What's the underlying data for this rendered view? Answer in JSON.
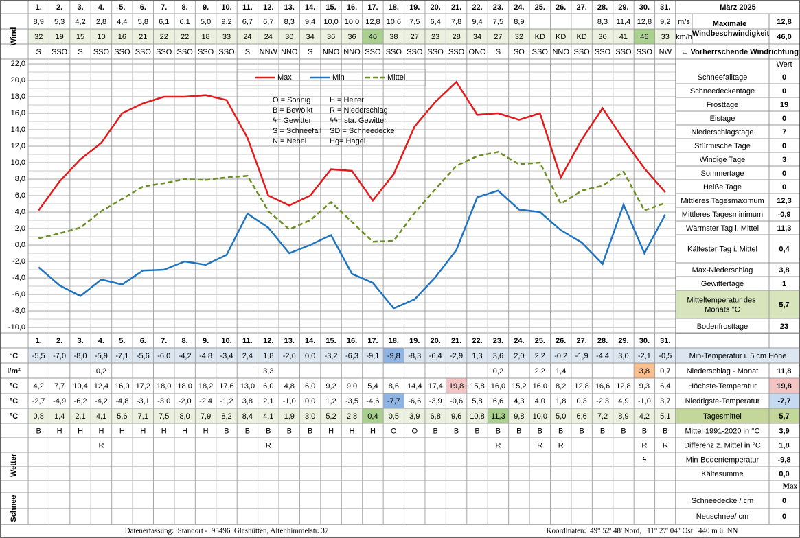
{
  "header": {
    "title": "März 2025"
  },
  "chart_data": {
    "type": "line",
    "categories": [
      "1.",
      "2.",
      "3.",
      "4.",
      "5.",
      "6.",
      "7.",
      "8.",
      "9.",
      "10.",
      "11.",
      "12.",
      "13.",
      "14.",
      "15.",
      "16.",
      "17.",
      "18.",
      "19.",
      "20.",
      "21.",
      "22.",
      "23.",
      "24.",
      "25.",
      "26.",
      "27.",
      "28.",
      "29.",
      "30.",
      "31."
    ],
    "category_colors": [
      "#000000",
      "#e00000",
      "#000000",
      "#000000",
      "#000000",
      "#000000",
      "#000000",
      "#000000",
      "#e00000",
      "#000000",
      "#000000",
      "#000000",
      "#000000",
      "#000000",
      "#000000",
      "#e00000",
      "#000000",
      "#000000",
      "#000000",
      "#000000",
      "#000000",
      "#000000",
      "#e00000",
      "#000000",
      "#000000",
      "#000000",
      "#000000",
      "#000000",
      "#000000",
      "#e00000",
      "#000000"
    ],
    "ylim": [
      -10,
      22
    ],
    "yticks": [
      {
        "value": 22,
        "label": "22,0"
      },
      {
        "value": 20,
        "label": "20,0"
      },
      {
        "value": 18,
        "label": "18,0"
      },
      {
        "value": 16,
        "label": "16,0"
      },
      {
        "value": 14,
        "label": "14,0"
      },
      {
        "value": 12,
        "label": "12,0"
      },
      {
        "value": 10,
        "label": "10,0"
      },
      {
        "value": 8,
        "label": "8,0"
      },
      {
        "value": 6,
        "label": "6,0"
      },
      {
        "value": 4,
        "label": "4,0"
      },
      {
        "value": 2,
        "label": "2,0"
      },
      {
        "value": 0,
        "label": "0,0"
      },
      {
        "value": -2,
        "label": "-2,0"
      },
      {
        "value": -4,
        "label": "-4,0"
      },
      {
        "value": -6,
        "label": "-6,0"
      },
      {
        "value": -8,
        "label": "-8,0"
      },
      {
        "value": -10,
        "label": "-10,0"
      }
    ],
    "grid": true,
    "legend": "top",
    "series": [
      {
        "name": "Max",
        "color": "#e31a1c",
        "line_style": "solid",
        "values": [
          4.2,
          7.7,
          10.4,
          12.4,
          16.0,
          17.2,
          18.0,
          18.0,
          18.2,
          17.6,
          13.0,
          6.0,
          4.8,
          6.0,
          9.2,
          9.0,
          5.4,
          8.6,
          14.4,
          17.4,
          19.8,
          15.8,
          16.0,
          15.2,
          16.0,
          8.2,
          12.8,
          16.6,
          12.8,
          9.3,
          6.4
        ],
        "value_labels": [
          "4,2",
          "7,7",
          "10,4",
          "12,4",
          "16,0",
          "17,2",
          "18,0",
          "18,0",
          "18,2",
          "17,6",
          "13,0",
          "6,0",
          "4,8",
          "6,0",
          "9,2",
          "9,0",
          "5,4",
          "8,6",
          "14,4",
          "17,4",
          "19,8",
          "15,8",
          "16,0",
          "15,2",
          "16,0",
          "8,2",
          "12,8",
          "16,6",
          "12,8",
          "9,3",
          "6,4"
        ],
        "row_unit": "°C",
        "row_label": "Höchste-Temperatur",
        "summary": "19,8",
        "summary_color": "#f2c4c4",
        "highlights": [
          {
            "index": 20,
            "color": "#f2c4c4"
          }
        ]
      },
      {
        "name": "Min",
        "color": "#1f74c0",
        "line_style": "solid",
        "values": [
          -2.7,
          -4.9,
          -6.2,
          -4.2,
          -4.8,
          -3.1,
          -3.0,
          -2.0,
          -2.4,
          -1.2,
          3.8,
          2.1,
          -1.0,
          0.0,
          1.2,
          -3.5,
          -4.6,
          -7.7,
          -6.6,
          -3.9,
          -0.6,
          5.8,
          6.6,
          4.3,
          4.0,
          1.8,
          0.3,
          -2.3,
          4.9,
          -1.0,
          3.7
        ],
        "value_labels": [
          "-2,7",
          "-4,9",
          "-6,2",
          "-4,2",
          "-4,8",
          "-3,1",
          "-3,0",
          "-2,0",
          "-2,4",
          "-1,2",
          "3,8",
          "2,1",
          "-1,0",
          "0,0",
          "1,2",
          "-3,5",
          "-4,6",
          "-7,7",
          "-6,6",
          "-3,9",
          "-0,6",
          "5,8",
          "6,6",
          "4,3",
          "4,0",
          "1,8",
          "0,3",
          "-2,3",
          "4,9",
          "-1,0",
          "3,7"
        ],
        "row_unit": "°C",
        "row_label": "Niedrigste-Temperatur",
        "summary": "-7,7",
        "summary_color": "#c5d9f1",
        "highlights": [
          {
            "index": 17,
            "color": "#8eb4e3"
          }
        ]
      },
      {
        "name": "Mittel",
        "color": "#6b8e23",
        "line_style": "dashed",
        "values": [
          0.8,
          1.4,
          2.1,
          4.1,
          5.6,
          7.1,
          7.5,
          8.0,
          7.9,
          8.2,
          8.4,
          4.1,
          1.9,
          3.0,
          5.2,
          2.8,
          0.4,
          0.5,
          3.9,
          6.8,
          9.6,
          10.8,
          11.3,
          9.8,
          10.0,
          5.0,
          6.6,
          7.2,
          8.9,
          4.2,
          5.1
        ],
        "value_labels": [
          "0,8",
          "1,4",
          "2,1",
          "4,1",
          "5,6",
          "7,1",
          "7,5",
          "8,0",
          "7,9",
          "8,2",
          "8,4",
          "4,1",
          "1,9",
          "3,0",
          "5,2",
          "2,8",
          "0,4",
          "0,5",
          "3,9",
          "6,8",
          "9,6",
          "10,8",
          "11,3",
          "9,8",
          "10,0",
          "5,0",
          "6,6",
          "7,2",
          "8,9",
          "4,2",
          "5,1"
        ],
        "row_unit": "°C",
        "row_label": "Tagesmittel",
        "summary": "5,7",
        "summary_color": "#c4d79b",
        "row_color": "#ebf1de",
        "highlights": [
          {
            "index": 16,
            "color": "#a9d08e"
          },
          {
            "index": 22,
            "color": "#a9d08e"
          }
        ]
      }
    ],
    "symbol_legend": [
      "O = Sonnig",
      "H = Heiter",
      "B = Bewölkt",
      "R = Niederschlag",
      "ϟ= Gewitter",
      "ϟϟ= sta. Gewitter",
      "S = Schneefall",
      "SD = Schneedecke",
      "N = Nebel",
      "Hg= Hagel"
    ]
  },
  "wind": {
    "label": "Wind",
    "speed_ms": {
      "unit": "m/s",
      "cells": [
        "8,9",
        "5,3",
        "4,2",
        "2,8",
        "4,4",
        "5,8",
        "6,1",
        "6,1",
        "5,0",
        "9,2",
        "6,7",
        "6,7",
        "8,3",
        "9,4",
        "10,0",
        "10,0",
        "12,8",
        "10,6",
        "7,5",
        "6,4",
        "7,8",
        "9,4",
        "7,5",
        "8,9",
        null,
        null,
        null,
        "8,3",
        "11,4",
        "12,8",
        "9,2"
      ]
    },
    "speed_kmh": {
      "unit": "km/h",
      "row_color": "#ebf1de",
      "highlights": [
        {
          "index": 16,
          "color": "#a9d08e"
        },
        {
          "index": 29,
          "color": "#a9d08e"
        }
      ],
      "cells": [
        "32",
        "19",
        "15",
        "10",
        "16",
        "21",
        "22",
        "22",
        "18",
        "33",
        "24",
        "24",
        "30",
        "34",
        "36",
        "36",
        "46",
        "38",
        "27",
        "23",
        "28",
        "34",
        "27",
        "32",
        "KD",
        "KD",
        "KD",
        "30",
        "41",
        "46",
        "33"
      ]
    },
    "direction": {
      "cells": [
        "S",
        "SSO",
        "S",
        "SSO",
        "SSO",
        "SSO",
        "SSO",
        "SSO",
        "SSO",
        "SSO",
        "S",
        "NNW",
        "NNO",
        "S",
        "NNO",
        "NNO",
        "SSO",
        "SSO",
        "SSO",
        "SSO",
        "SSO",
        "ONO",
        "S",
        "SO",
        "SSO",
        "NNO",
        "SSO",
        "SSO",
        "SSO",
        "SSO",
        "NW"
      ]
    },
    "max_label": "Maximale Windbeschwindigkeit",
    "max_ms": "12,8",
    "max_kmh": "46,0",
    "direction_label": "← Vorherrschende Windrichtung"
  },
  "stats": {
    "header": "Wert",
    "items": [
      {
        "label": "Schneefalltage",
        "value": "0"
      },
      {
        "label": "Schneedeckentage",
        "value": "0"
      },
      {
        "label": "Frosttage",
        "value": "19"
      },
      {
        "label": "Eistage",
        "value": "0"
      },
      {
        "label": "Niederschlagstage",
        "value": "7"
      },
      {
        "label": "Stürmische Tage",
        "value": "0"
      },
      {
        "label": "Windige Tage",
        "value": "3"
      },
      {
        "label": "Sommertage",
        "value": "0"
      },
      {
        "label": "Heiße Tage",
        "value": "0"
      },
      {
        "label": "Mittleres Tagesmaximum",
        "value": "12,3"
      },
      {
        "label": "Mittleres Tagesminimum",
        "value": "-0,9"
      },
      {
        "label": "Wärmster Tag i. Mittel",
        "value": "11,3"
      },
      {
        "label": "Kältester Tag i. Mittel",
        "value": "0,4"
      },
      {
        "label": "Max-Niederschlag",
        "value": "3,8"
      },
      {
        "label": "Gewittertage",
        "value": "1"
      },
      {
        "label": "Mitteltemperatur des Monats °C",
        "value": "5,7",
        "row_color": "#d8e4bc"
      },
      {
        "label": "Bodenfrosttage",
        "value": "23"
      }
    ]
  },
  "soil_min": {
    "unit": "°C",
    "label": "Min-Temperatur i. 5 cm Höhe",
    "row_color": "#dce6f1",
    "highlights": [
      {
        "index": 17,
        "color": "#8eb4e3"
      }
    ],
    "cells": [
      "-5,5",
      "-7,0",
      "-8,0",
      "-5,9",
      "-7,1",
      "-5,6",
      "-6,0",
      "-4,2",
      "-4,8",
      "-3,4",
      "2,4",
      "1,8",
      "-2,6",
      "0,0",
      "-3,2",
      "-6,3",
      "-9,1",
      "-9,8",
      "-8,3",
      "-6,4",
      "-2,9",
      "1,3",
      "3,6",
      "2,0",
      "2,2",
      "-0,2",
      "-1,9",
      "-4,4",
      "3,0",
      "-2,1",
      "-0,5"
    ]
  },
  "precipitation": {
    "unit": "l/m²",
    "label": "Niederschlag - Monat",
    "value": "11,8",
    "highlights": [
      {
        "index": 29,
        "color": "#fabf8f"
      }
    ],
    "cells": [
      null,
      null,
      null,
      "0,2",
      null,
      null,
      null,
      null,
      null,
      null,
      null,
      "3,3",
      null,
      null,
      null,
      null,
      null,
      null,
      null,
      null,
      null,
      null,
      "0,2",
      null,
      "2,2",
      "1,4",
      null,
      null,
      null,
      "3,8",
      "0,7"
    ]
  },
  "weather": {
    "label": "Wetter",
    "rows": [
      {
        "cells": [
          "B",
          "H",
          "H",
          "H",
          "H",
          "H",
          "H",
          "H",
          "H",
          "B",
          "B",
          "B",
          "B",
          "B",
          "H",
          "H",
          "H",
          "O",
          "O",
          "B",
          "B",
          "B",
          "B",
          "B",
          "B",
          "B",
          "B",
          "B",
          "B",
          "B",
          "B"
        ]
      },
      {
        "cells": [
          null,
          null,
          null,
          "R",
          null,
          null,
          null,
          null,
          null,
          null,
          null,
          "R",
          null,
          null,
          null,
          null,
          null,
          null,
          null,
          null,
          null,
          null,
          "R",
          null,
          "R",
          "R",
          null,
          null,
          null,
          "R",
          "R"
        ]
      },
      {
        "text_color": "#e00000",
        "cells": [
          null,
          null,
          null,
          null,
          null,
          null,
          null,
          null,
          null,
          null,
          null,
          null,
          null,
          null,
          null,
          null,
          null,
          null,
          null,
          null,
          null,
          null,
          null,
          null,
          null,
          null,
          null,
          null,
          null,
          "ϟ",
          null
        ]
      }
    ],
    "notes": [
      {
        "label": "Mittel 1991-2020 in °C",
        "value": "3,9"
      },
      {
        "label": "Differenz z. Mittel in °C",
        "value": "1,8",
        "text_color": "#e00000"
      },
      {
        "label": "Min-Bodentemperatur",
        "value": "-9,8"
      },
      {
        "label": "Kältesumme",
        "value": "0,0"
      }
    ],
    "max_header": "Max"
  },
  "snow": {
    "label": "Schnee",
    "notes": [
      {
        "label": "Schneedecke / cm",
        "value": "0"
      },
      {
        "label": "Neuschnee/ cm",
        "value": "0"
      }
    ]
  },
  "footer": {
    "left": "Datenerfassung:  Standort -  95496  Glashütten, Altenhimmelstr. 37",
    "right": "Koordinaten:  49° 52' 48' Nord,   11° 27' 04'' Ost   440 m ü. NN"
  }
}
